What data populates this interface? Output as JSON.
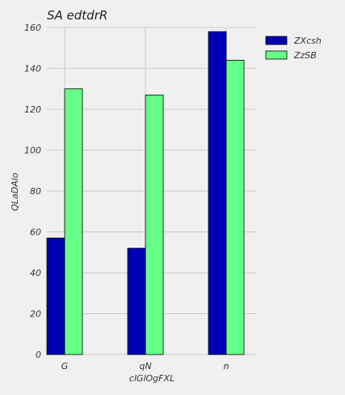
{
  "chart_data": {
    "type": "bar",
    "title": "SA  edtdrR",
    "xlabel": "clGlOgFXL",
    "ylabel": "QLaDAlo",
    "categories": [
      "G",
      "qN",
      "n"
    ],
    "series": [
      {
        "name": "ZXcsh",
        "color": "#0000b4",
        "values": [
          57,
          52,
          158
        ]
      },
      {
        "name": "ZzSB",
        "color": "#66ff88",
        "values": [
          130,
          127,
          144
        ]
      }
    ],
    "ylim": [
      0,
      160
    ],
    "yticks": [
      0,
      20,
      40,
      60,
      80,
      100,
      120,
      140,
      160
    ],
    "grid": true,
    "legend_position": "top-right"
  }
}
